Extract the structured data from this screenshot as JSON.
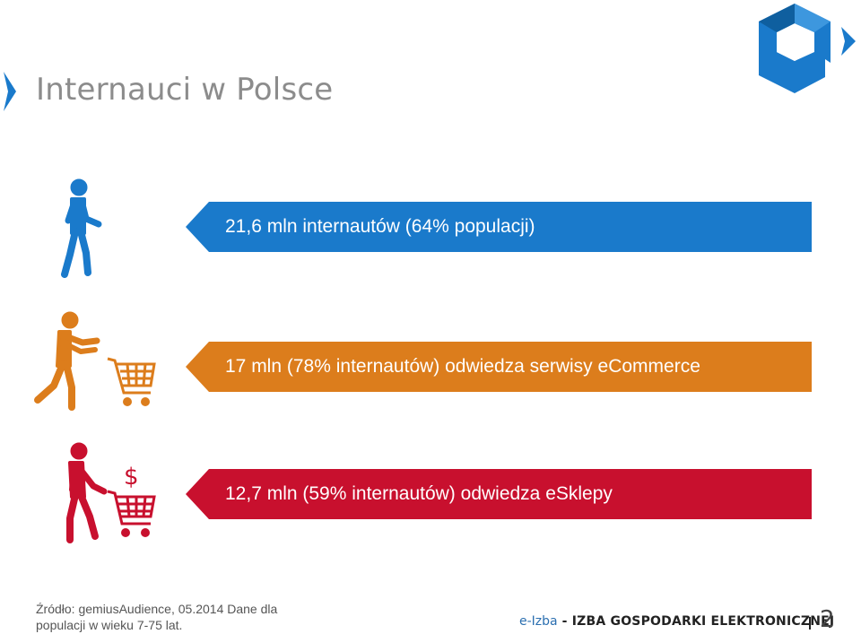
{
  "title": "Internauci w Polsce",
  "colors": {
    "blue": "#1a7acb",
    "orange": "#dc7d1c",
    "red": "#c8102e",
    "title_gray": "#8c8c8c"
  },
  "banners": [
    {
      "text": "21,6 mln internautów (64% populacji)",
      "color": "#1a7acb",
      "icon": "walking-person-icon"
    },
    {
      "text": "17 mln (78% internautów) odwiedza serwisy eCommerce",
      "color": "#dc7d1c",
      "icon": "person-with-shopping-cart-icon"
    },
    {
      "text": "12,7 mln (59% internautów) odwiedza eSklepy",
      "color": "#c8102e",
      "icon": "person-with-cart-and-dollar-icon"
    }
  ],
  "source": "Źródło: gemiusAudience, 05.2014 Dane dla populacji w wieku 7-75 lat.",
  "footer": {
    "brand_light": "e-Izba",
    "brand_bold": " - IZBA GOSPODARKI ELEKTRONICZNEJ",
    "page_number": "2"
  }
}
